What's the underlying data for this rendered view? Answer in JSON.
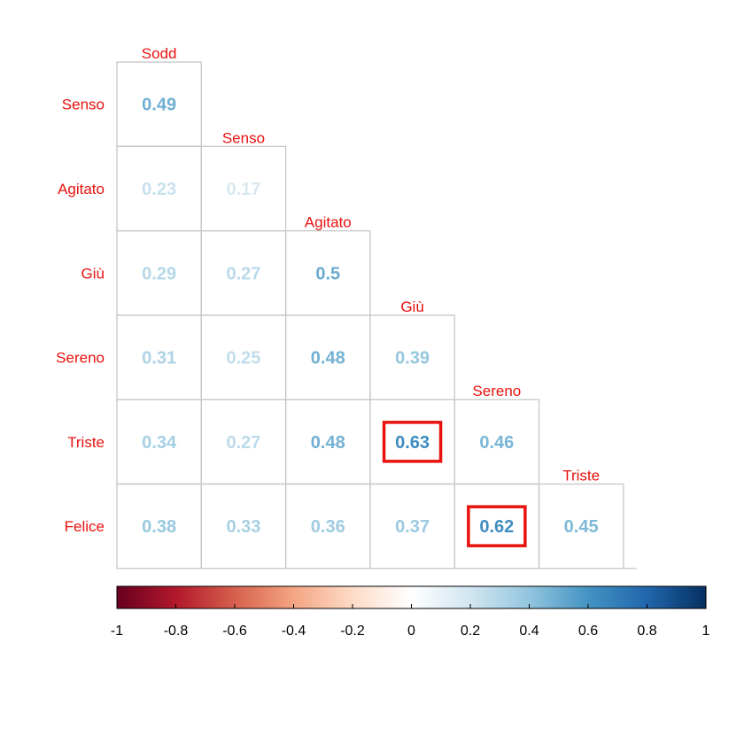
{
  "chart_data": {
    "type": "heatmap",
    "layout": "lower-triangle correlation matrix",
    "row_labels": [
      "Senso",
      "Agitato",
      "Giù",
      "Sereno",
      "Triste",
      "Felice"
    ],
    "column_labels": [
      "Sodd",
      "Senso",
      "Agitato",
      "Giù",
      "Sereno",
      "Triste"
    ],
    "values": [
      [
        0.49
      ],
      [
        0.23,
        0.17
      ],
      [
        0.29,
        0.27,
        0.5
      ],
      [
        0.31,
        0.25,
        0.48,
        0.39
      ],
      [
        0.34,
        0.27,
        0.48,
        0.63,
        0.46
      ],
      [
        0.38,
        0.33,
        0.36,
        0.37,
        0.62,
        0.45
      ]
    ],
    "value_labels": [
      [
        "0.49"
      ],
      [
        "0.23",
        "0.17"
      ],
      [
        "0.29",
        "0.27",
        "0.5"
      ],
      [
        "0.31",
        "0.25",
        "0.48",
        "0.39"
      ],
      [
        "0.34",
        "0.27",
        "0.48",
        "0.63",
        "0.46"
      ],
      [
        "0.38",
        "0.33",
        "0.36",
        "0.37",
        "0.62",
        "0.45"
      ]
    ],
    "highlighted_cells": [
      {
        "row": "Triste",
        "column": "Giù",
        "value": 0.63
      },
      {
        "row": "Felice",
        "column": "Sereno",
        "value": 0.62
      }
    ],
    "color_scale": {
      "range": [
        -1,
        1
      ],
      "ticks": [
        "-1",
        "-0.8",
        "-0.6",
        "-0.4",
        "-0.2",
        "0",
        "0.2",
        "0.4",
        "0.6",
        "0.8",
        "1"
      ],
      "palette": [
        "#67001f",
        "#b2182b",
        "#d6604d",
        "#f4a582",
        "#fddbc7",
        "#ffffff",
        "#d1e5f0",
        "#92c5de",
        "#4393c3",
        "#2166ac",
        "#053061"
      ]
    },
    "label_color": "#e8120e",
    "highlight_color": "#e8120e"
  }
}
